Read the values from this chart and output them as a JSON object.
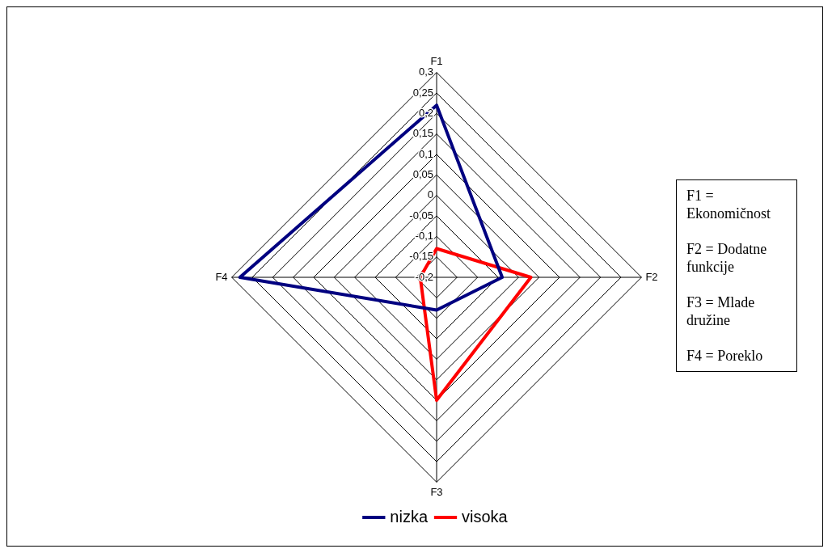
{
  "chart_data": {
    "type": "radar",
    "categories": [
      "F1",
      "F2",
      "F3",
      "F4"
    ],
    "series": [
      {
        "name": "nizka",
        "color": "#000080",
        "values": [
          0.22,
          -0.04,
          -0.12,
          0.28
        ]
      },
      {
        "name": "visoka",
        "color": "#ff0000",
        "values": [
          -0.13,
          0.03,
          0.1,
          -0.16
        ]
      }
    ],
    "ylim": [
      -0.2,
      0.3
    ],
    "yticks": [
      {
        "value": -0.2,
        "label": "-0,2"
      },
      {
        "value": -0.15,
        "label": "-0,15"
      },
      {
        "value": -0.1,
        "label": "-0,1"
      },
      {
        "value": -0.05,
        "label": "-0,05"
      },
      {
        "value": 0,
        "label": "0"
      },
      {
        "value": 0.05,
        "label": "0,05"
      },
      {
        "value": 0.1,
        "label": "0,1"
      },
      {
        "value": 0.15,
        "label": "0,15"
      },
      {
        "value": 0.2,
        "label": "0,2"
      },
      {
        "value": 0.25,
        "label": "0,25"
      },
      {
        "value": 0.3,
        "label": "0,3"
      }
    ],
    "grid": true,
    "legend": "bottom",
    "marker": "none",
    "line_style": "solid",
    "annotations": [
      "F1 = Ekonomičnost",
      "F2 = Dodatne funkcije",
      "F3 = Mlade družine",
      "F4 = Poreklo"
    ]
  }
}
